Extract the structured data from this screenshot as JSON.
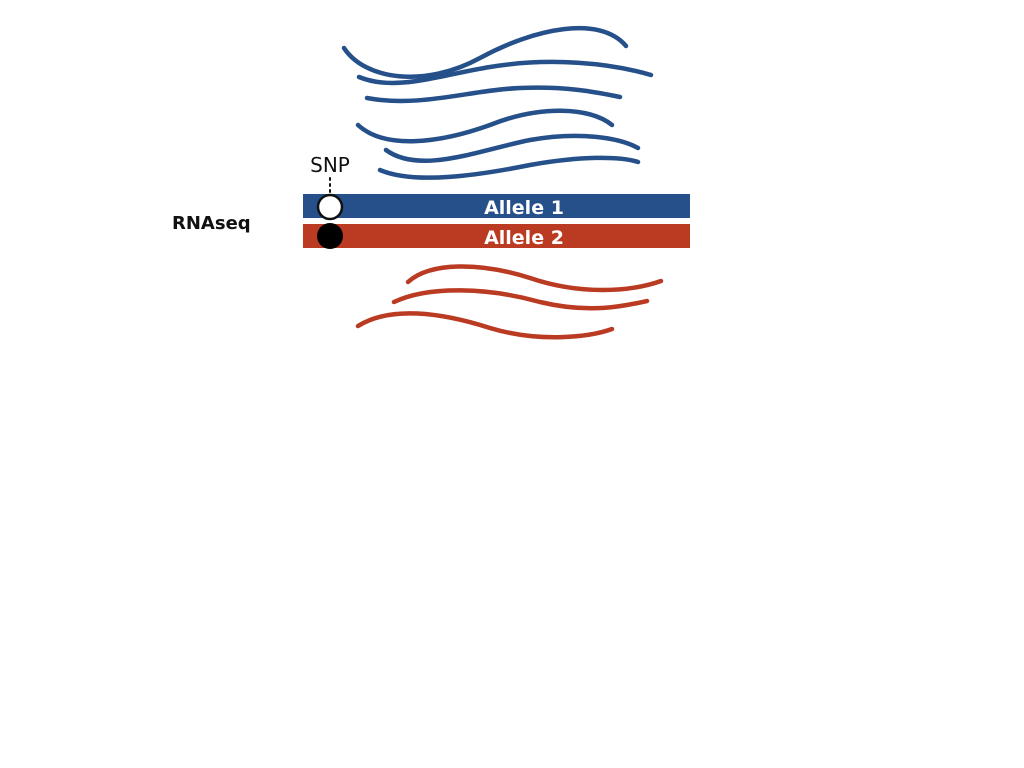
{
  "slide": {
    "method_label": "RNAseq",
    "snp_label": "SNP",
    "alleles": [
      {
        "label": "Allele 1",
        "color": "#25508a",
        "snp_state": "open"
      },
      {
        "label": "Allele 2",
        "color": "#bb3a22",
        "snp_state": "filled"
      }
    ],
    "reads": {
      "allele_1_count": 6,
      "allele_2_count": 3
    }
  }
}
